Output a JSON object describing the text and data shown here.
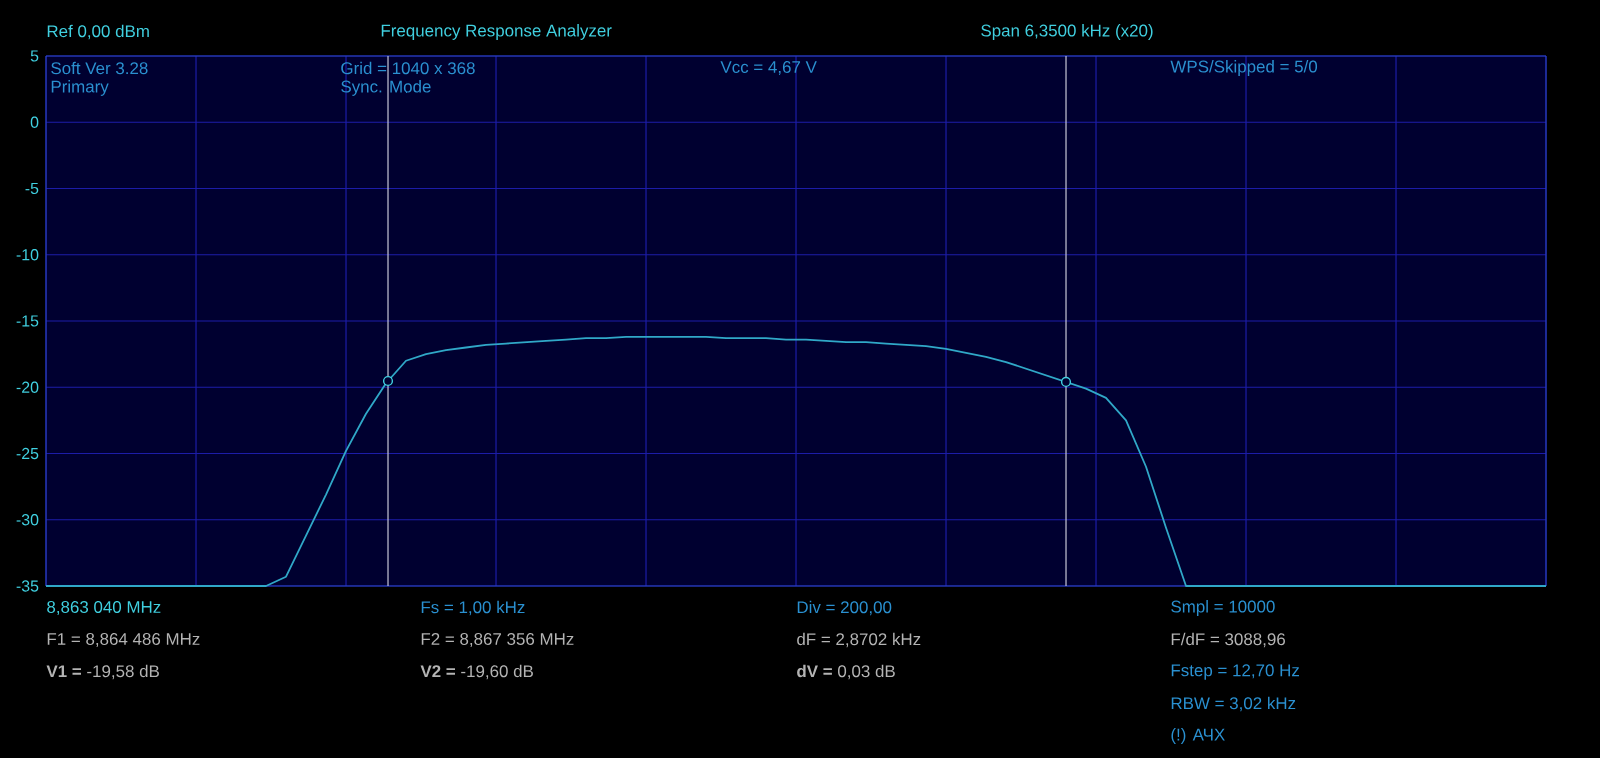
{
  "chart_data": {
    "type": "line",
    "title": "Frequency Response Analyzer",
    "annotations": [
      "Ref  0,00 dBm",
      "Span 6,3500 kHz (x20)",
      "Soft Ver 3.28",
      "Primary",
      "Grid = 1040 x 368",
      "Sync. Mode",
      "Vcc = 4,67 V",
      "WPS/Skipped  = 5/0",
      "8,863 040 MHz",
      "F1 = 8,864 486 MHz",
      "**V1 =** -19,58 dB",
      "Fs = 1,00 kHz",
      "F2 = 8,867 356 MHz",
      "**V2 =** -19,60 dB",
      "Div = 200,00",
      "dF = 2,8702 kHz",
      "**dV =** 0,03 dB",
      "Smpl = 10000",
      "F/dF = 3088,96",
      "Fstep = 12,70 Hz",
      "RBW = 3,02 kHz",
      "(!) АЧХ"
    ],
    "categories": [
      null,
      null,
      null,
      null,
      null,
      null,
      null,
      null,
      null,
      null,
      null,
      null,
      null,
      null,
      null,
      null,
      null,
      null,
      null,
      null,
      null,
      null,
      null,
      null,
      null,
      null,
      null,
      null,
      null,
      null,
      null,
      null,
      null,
      null,
      null,
      null,
      null,
      null,
      null,
      null,
      null,
      null,
      null,
      null,
      null,
      null,
      null,
      null,
      null,
      null,
      null,
      null,
      null,
      null,
      null,
      null,
      null,
      null,
      null,
      null,
      null,
      null,
      null,
      null,
      null,
      null,
      null,
      null,
      null,
      null,
      null,
      null,
      null,
      null,
      null,
      null
    ],
    "series": [
      {
        "color": "#30a8c8",
        "values": [
          -35,
          -35,
          -35,
          -35,
          -35,
          -35,
          -35,
          -35,
          -35,
          -35,
          -35,
          -35,
          -34.3,
          -31.2,
          -28.1,
          -24.8,
          -22.0,
          -19.7,
          -18.0,
          -17.5,
          -17.2,
          -17.0,
          -16.8,
          -16.7,
          -16.6,
          -16.5,
          -16.4,
          -16.3,
          -16.3,
          -16.2,
          -16.2,
          -16.2,
          -16.2,
          -16.2,
          -16.3,
          -16.3,
          -16.3,
          -16.4,
          -16.4,
          -16.5,
          -16.6,
          -16.6,
          -16.7,
          -16.8,
          -16.9,
          -17.1,
          -17.4,
          -17.7,
          -18.1,
          -18.6,
          -19.1,
          -19.6,
          -20.1,
          -20.8,
          -22.5,
          -26.0,
          -30.6,
          -35,
          -35,
          -35,
          -35,
          -35,
          -35,
          -35,
          -35,
          -35,
          -35,
          -35,
          -35,
          -35,
          -35,
          -35,
          -35,
          -35,
          -35,
          -35
        ]
      }
    ],
    "ylim": [
      -35,
      5
    ],
    "yticks": [
      5,
      0,
      -5,
      -10,
      -15,
      -20,
      -25,
      -30,
      -35
    ],
    "tick_labels": "y",
    "grid": true
  }
}
